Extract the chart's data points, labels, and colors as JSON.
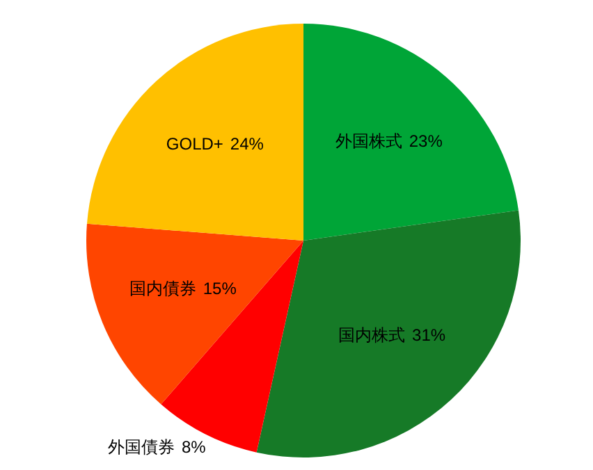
{
  "chart_data": {
    "type": "pie",
    "categories": [
      "外国株式",
      "国内株式",
      "外国債券",
      "国内債券",
      "GOLD+"
    ],
    "values": [
      23,
      31,
      8,
      15,
      24
    ],
    "value_labels": [
      "23%",
      "31%",
      "8%",
      "15%",
      "24%"
    ],
    "colors": [
      "#00a537",
      "#167a27",
      "#ff0000",
      "#ff4500",
      "#ffc000"
    ]
  }
}
